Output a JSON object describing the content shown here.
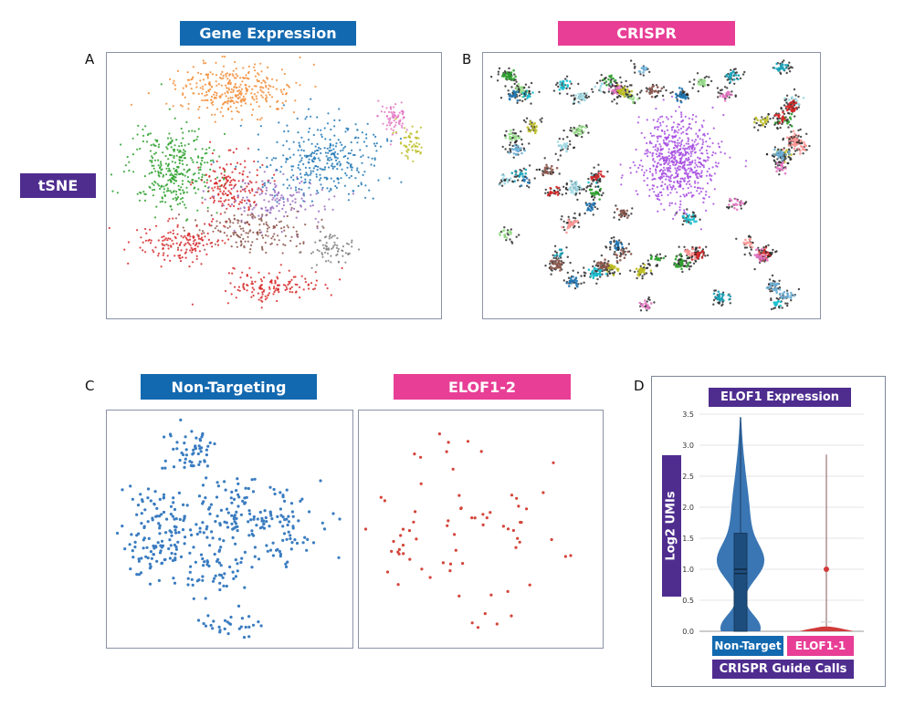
{
  "panels": {
    "a": {
      "letter": "A",
      "title": "Gene Expression",
      "title_color": "#1369b0"
    },
    "b": {
      "letter": "B",
      "title": "CRISPR",
      "title_color": "#e83e96"
    },
    "c": {
      "letter": "C",
      "left_title": "Non-Targeting",
      "left_color": "#1369b0",
      "right_title": "ELOF1-2",
      "right_color": "#e83e96"
    },
    "d": {
      "letter": "D",
      "title": "ELOF1 Expression",
      "ylabel": "Log2 UMIs",
      "xlabel": "CRISPR Guide Calls"
    }
  },
  "row_label": "tSNE",
  "row_label_color": "#4f2d8f",
  "chart_data": [
    {
      "type": "scatter",
      "panel": "A",
      "title": "Gene Expression",
      "note_axes": "none shown",
      "clusters": [
        {
          "color": "#f28c36",
          "center": [
            38,
            14
          ],
          "spread": [
            11,
            6
          ],
          "n": 320
        },
        {
          "color": "#e377c2",
          "center": [
            86,
            24
          ],
          "spread": [
            3,
            4
          ],
          "n": 70
        },
        {
          "color": "#bcbd22",
          "center": [
            91,
            33
          ],
          "spread": [
            2.5,
            4
          ],
          "n": 55
        },
        {
          "color": "#2ca02c",
          "center": [
            20,
            44
          ],
          "spread": [
            8,
            10
          ],
          "n": 330
        },
        {
          "color": "#1f77b4",
          "center": [
            65,
            40
          ],
          "spread": [
            11,
            9
          ],
          "n": 330
        },
        {
          "color": "#d62728",
          "center": [
            37,
            50
          ],
          "spread": [
            6,
            7
          ],
          "n": 170
        },
        {
          "color": "#9467bd",
          "center": [
            50,
            55
          ],
          "spread": [
            10,
            6
          ],
          "n": 140
        },
        {
          "color": "#8c564b",
          "center": [
            42,
            67
          ],
          "spread": [
            10,
            5
          ],
          "n": 170
        },
        {
          "color": "#d62728",
          "center": [
            22,
            72
          ],
          "spread": [
            8,
            5
          ],
          "n": 150
        },
        {
          "color": "#d62728",
          "center": [
            50,
            88
          ],
          "spread": [
            9,
            4
          ],
          "n": 140
        },
        {
          "color": "#7f7f7f",
          "center": [
            67,
            74
          ],
          "spread": [
            5,
            4
          ],
          "n": 70
        }
      ]
    },
    {
      "type": "scatter",
      "panel": "B",
      "title": "CRISPR",
      "main_cluster": {
        "color": "#a64ce0",
        "center": [
          58,
          40
        ],
        "spread": [
          7,
          10
        ],
        "n": 650
      },
      "guide_cluster_count": 70,
      "guide_colors": [
        "#17becf",
        "#2ca02c",
        "#bcbd22",
        "#1f77b4",
        "#9edae5",
        "#d62728",
        "#ff9896",
        "#8c564b",
        "#e377c2",
        "#98df8a",
        "#17a2b8",
        "#6baed6"
      ],
      "background_color": "#222222"
    },
    {
      "type": "scatter",
      "panel": "C-left",
      "title": "Non-Targeting",
      "color": "#3a7cc0",
      "n": 420
    },
    {
      "type": "scatter",
      "panel": "C-right",
      "title": "ELOF1-2",
      "color": "#d4453a",
      "n": 70
    },
    {
      "type": "violin",
      "panel": "D",
      "title": "ELOF1 Expression",
      "ylabel": "Log2 UMIs",
      "xlabel": "CRISPR Guide Calls",
      "ylim": [
        0,
        3.5
      ],
      "yticks": [
        "0.0",
        "0.5",
        "1.0",
        "1.5",
        "2.0",
        "2.5",
        "3.0",
        "3.5"
      ],
      "categories": [
        "Non-Target",
        "ELOF1-1"
      ],
      "category_colors": [
        "#1369b0",
        "#e83e96"
      ],
      "series": [
        {
          "name": "Non-Target",
          "color": "#2f6fb0",
          "min": 0,
          "q1": 0,
          "median": 1.0,
          "mean": 0.93,
          "q3": 1.58,
          "max": 3.45
        },
        {
          "name": "ELOF1-1",
          "color": "#d23a3a",
          "min": 0,
          "q1": 0,
          "median": 0,
          "q3": 0,
          "max": 2.85,
          "outlier": 1.0,
          "upper_fence": 0.15
        }
      ],
      "grid": true
    }
  ]
}
